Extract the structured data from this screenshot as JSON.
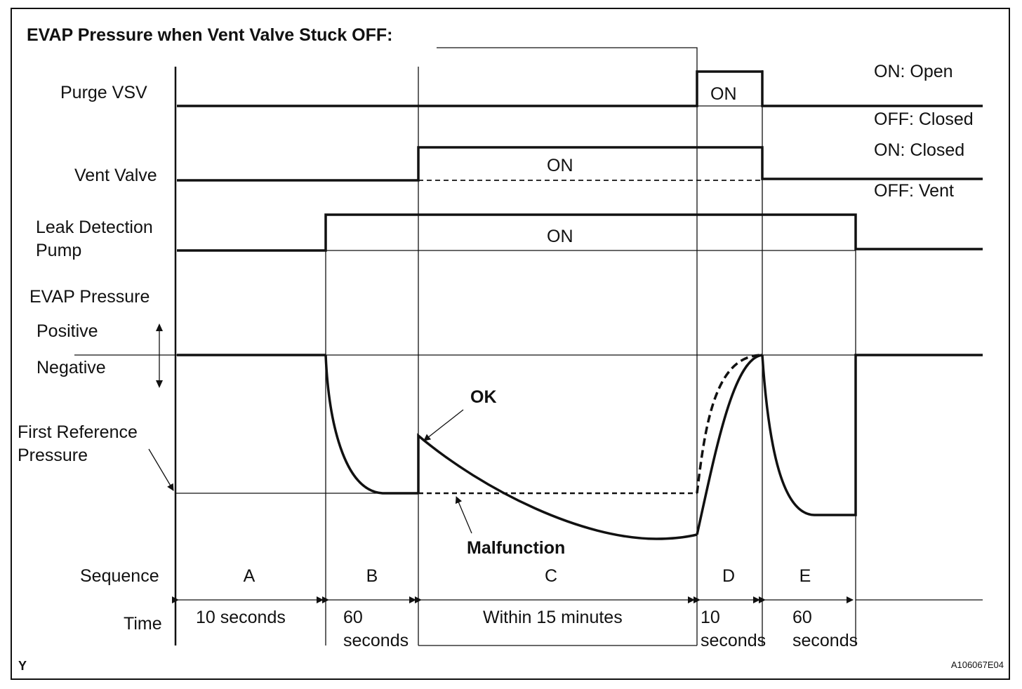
{
  "title": "EVAP Pressure when Vent Valve Stuck OFF:",
  "signals": {
    "purge_vsv": {
      "label": "Purge VSV",
      "on_label": "ON",
      "state_on": "ON: Open",
      "state_off": "OFF: Closed"
    },
    "vent_valve": {
      "label": "Vent Valve",
      "on_label": "ON",
      "state_on": "ON: Closed",
      "state_off": "OFF: Vent"
    },
    "leak_pump": {
      "label_line1": "Leak Detection",
      "label_line2": "Pump",
      "on_label": "ON"
    },
    "evap_pressure": {
      "label": "EVAP Pressure",
      "positive": "Positive",
      "negative": "Negative",
      "ref_line1": "First Reference",
      "ref_line2": "Pressure",
      "ok_label": "OK",
      "malfunction_label": "Malfunction"
    }
  },
  "sequence": {
    "label": "Sequence",
    "phases": [
      "A",
      "B",
      "C",
      "D",
      "E"
    ]
  },
  "time": {
    "label": "Time",
    "a": "10 seconds",
    "b_line1": "60",
    "b_line2": "seconds",
    "c": "Within 15 minutes",
    "d_line1": "10",
    "d_line2": "seconds",
    "e_line1": "60",
    "e_line2": "seconds"
  },
  "footer": {
    "corner_mark": "Y",
    "figure_id": "A106067E04"
  }
}
